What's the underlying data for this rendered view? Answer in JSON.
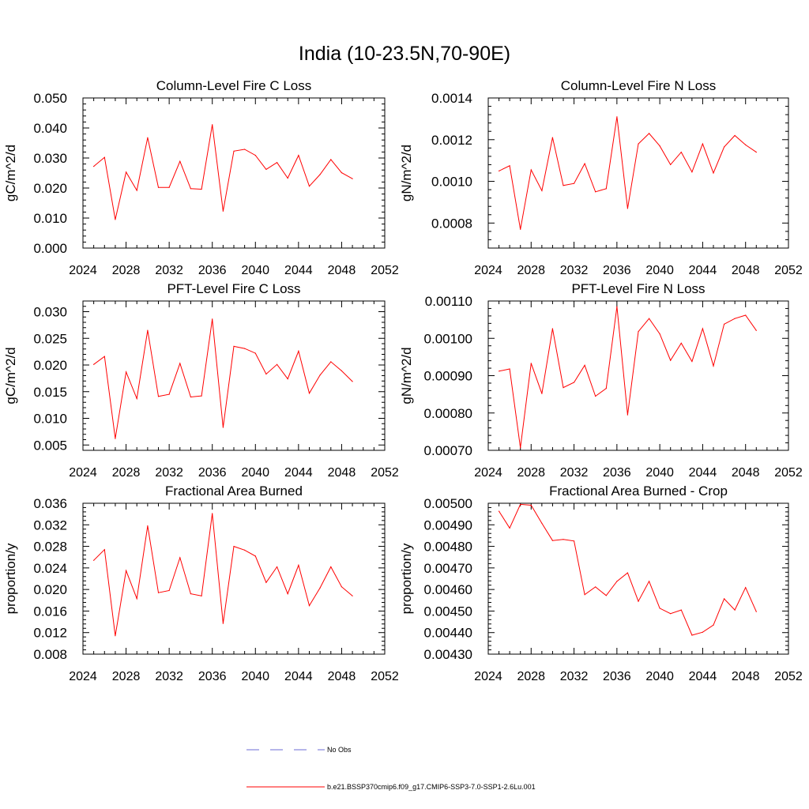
{
  "page_title": "India (10-23.5N,70-90E)",
  "colors": {
    "series": "#ff0000",
    "obs": "#6b6bd6",
    "axis": "#000000"
  },
  "legend": {
    "obs_label": "No Obs",
    "series_label": "b.e21.BSSP370cmip6.f09_g17.CMIP6-SSP3-7.0-SSP1-2.6Lu.001"
  },
  "chart_data": [
    {
      "type": "line",
      "title": "Column-Level Fire C Loss",
      "ylabel": "gC/m^2/d",
      "xlim": [
        2024,
        2052
      ],
      "ylim": [
        0,
        0.05
      ],
      "xticks": [
        "2024",
        "2028",
        "2032",
        "2036",
        "2040",
        "2044",
        "2048",
        "2052"
      ],
      "yticks": [
        "0.000",
        "0.010",
        "0.020",
        "0.030",
        "0.040",
        "0.050"
      ],
      "x": [
        2025,
        2026,
        2027,
        2028,
        2029,
        2030,
        2031,
        2032,
        2033,
        2034,
        2035,
        2036,
        2037,
        2038,
        2039,
        2040,
        2041,
        2042,
        2043,
        2044,
        2045,
        2046,
        2047,
        2048,
        2049
      ],
      "values": [
        0.0272,
        0.0302,
        0.0095,
        0.0253,
        0.0192,
        0.0368,
        0.0202,
        0.0202,
        0.0289,
        0.0198,
        0.0196,
        0.0411,
        0.0123,
        0.0323,
        0.0329,
        0.0309,
        0.0262,
        0.0285,
        0.0233,
        0.0309,
        0.0206,
        0.0245,
        0.0295,
        0.0251,
        0.0231
      ]
    },
    {
      "type": "line",
      "title": "Column-Level Fire N Loss",
      "ylabel": "gN/m^2/d",
      "xlim": [
        2024,
        2052
      ],
      "ylim": [
        0.00068,
        0.0014
      ],
      "xticks": [
        "2024",
        "2028",
        "2032",
        "2036",
        "2040",
        "2044",
        "2048",
        "2052"
      ],
      "yticks": [
        "0.0008",
        "0.0010",
        "0.0012",
        "0.0014"
      ],
      "x": [
        2025,
        2026,
        2027,
        2028,
        2029,
        2030,
        2031,
        2032,
        2033,
        2034,
        2035,
        2036,
        2037,
        2038,
        2039,
        2040,
        2041,
        2042,
        2043,
        2044,
        2045,
        2046,
        2047,
        2048,
        2049
      ],
      "values": [
        0.00105,
        0.001075,
        0.00077,
        0.001055,
        0.000955,
        0.00121,
        0.00098,
        0.00099,
        0.001085,
        0.00095,
        0.000965,
        0.00131,
        0.00087,
        0.00118,
        0.00123,
        0.00117,
        0.00108,
        0.00114,
        0.001045,
        0.00118,
        0.00104,
        0.001165,
        0.00122,
        0.001175,
        0.00114
      ]
    },
    {
      "type": "line",
      "title": "PFT-Level Fire C Loss",
      "ylabel": "gC/m^2/d",
      "xlim": [
        2024,
        2052
      ],
      "ylim": [
        0.004,
        0.032
      ],
      "xticks": [
        "2024",
        "2028",
        "2032",
        "2036",
        "2040",
        "2044",
        "2048",
        "2052"
      ],
      "yticks": [
        "0.005",
        "0.010",
        "0.015",
        "0.020",
        "0.025",
        "0.030"
      ],
      "x": [
        2025,
        2026,
        2027,
        2028,
        2029,
        2030,
        2031,
        2032,
        2033,
        2034,
        2035,
        2036,
        2037,
        2038,
        2039,
        2040,
        2041,
        2042,
        2043,
        2044,
        2045,
        2046,
        2047,
        2048,
        2049
      ],
      "values": [
        0.0201,
        0.0216,
        0.0062,
        0.0187,
        0.0137,
        0.0265,
        0.0141,
        0.0145,
        0.0203,
        0.014,
        0.0142,
        0.0286,
        0.0083,
        0.0235,
        0.0231,
        0.0222,
        0.0183,
        0.0201,
        0.0174,
        0.0226,
        0.0147,
        0.0181,
        0.0206,
        0.0189,
        0.0169
      ]
    },
    {
      "type": "line",
      "title": "PFT-Level Fire N Loss",
      "ylabel": "gN/m^2/d",
      "xlim": [
        2024,
        2052
      ],
      "ylim": [
        0.0007,
        0.0011
      ],
      "xticks": [
        "2024",
        "2028",
        "2032",
        "2036",
        "2040",
        "2044",
        "2048",
        "2052"
      ],
      "yticks": [
        "0.00070",
        "0.00080",
        "0.00090",
        "0.00100",
        "0.00110"
      ],
      "x": [
        2025,
        2026,
        2027,
        2028,
        2029,
        2030,
        2031,
        2032,
        2033,
        2034,
        2035,
        2036,
        2037,
        2038,
        2039,
        2040,
        2041,
        2042,
        2043,
        2044,
        2045,
        2046,
        2047,
        2048,
        2049
      ],
      "values": [
        0.000912,
        0.000918,
        0.000707,
        0.000933,
        0.000852,
        0.001026,
        0.000868,
        0.000882,
        0.000928,
        0.000845,
        0.000866,
        0.001085,
        0.000795,
        0.001018,
        0.001053,
        0.001012,
        0.000941,
        0.000987,
        0.000938,
        0.001026,
        0.000926,
        0.001038,
        0.001053,
        0.001062,
        0.001021
      ]
    },
    {
      "type": "line",
      "title": "Fractional Area Burned",
      "ylabel": "proportion/y",
      "xlim": [
        2024,
        2052
      ],
      "ylim": [
        0.008,
        0.036
      ],
      "xticks": [
        "2024",
        "2028",
        "2032",
        "2036",
        "2040",
        "2044",
        "2048",
        "2052"
      ],
      "yticks": [
        "0.008",
        "0.012",
        "0.016",
        "0.020",
        "0.024",
        "0.028",
        "0.032",
        "0.036"
      ],
      "x": [
        2025,
        2026,
        2027,
        2028,
        2029,
        2030,
        2031,
        2032,
        2033,
        2034,
        2035,
        2036,
        2037,
        2038,
        2039,
        2040,
        2041,
        2042,
        2043,
        2044,
        2045,
        2046,
        2047,
        2048,
        2049
      ],
      "values": [
        0.0254,
        0.0274,
        0.0114,
        0.0235,
        0.0183,
        0.0318,
        0.0194,
        0.0198,
        0.0259,
        0.0192,
        0.0188,
        0.0341,
        0.0137,
        0.028,
        0.0273,
        0.0262,
        0.0213,
        0.0242,
        0.0192,
        0.0245,
        0.017,
        0.0203,
        0.0242,
        0.0205,
        0.0188
      ]
    },
    {
      "type": "line",
      "title": "Fractional Area Burned - Crop",
      "ylabel": "proportion/y",
      "xlim": [
        2024,
        2052
      ],
      "ylim": [
        0.0043,
        0.005
      ],
      "xticks": [
        "2024",
        "2028",
        "2032",
        "2036",
        "2040",
        "2044",
        "2048",
        "2052"
      ],
      "yticks": [
        "0.00430",
        "0.00440",
        "0.00450",
        "0.00460",
        "0.00470",
        "0.00480",
        "0.00490",
        "0.00500"
      ],
      "x": [
        2025,
        2026,
        2027,
        2028,
        2029,
        2030,
        2031,
        2032,
        2033,
        2034,
        2035,
        2036,
        2037,
        2038,
        2039,
        2040,
        2041,
        2042,
        2043,
        2044,
        2045,
        2046,
        2047,
        2048,
        2049
      ],
      "values": [
        0.004963,
        0.004885,
        0.004995,
        0.004991,
        0.004907,
        0.004827,
        0.004832,
        0.004825,
        0.004576,
        0.004612,
        0.004572,
        0.004638,
        0.004677,
        0.004545,
        0.004638,
        0.004513,
        0.004488,
        0.004505,
        0.004388,
        0.004402,
        0.004435,
        0.004557,
        0.004505,
        0.004609,
        0.004497
      ]
    }
  ]
}
